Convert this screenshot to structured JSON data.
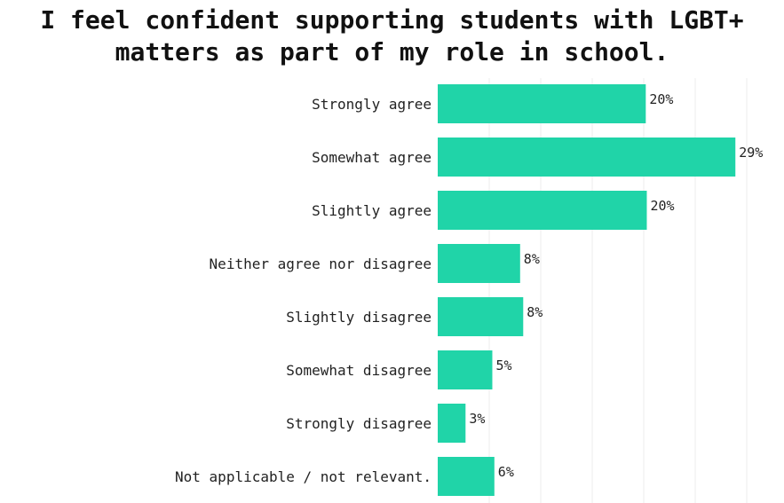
{
  "chart_data": {
    "type": "bar",
    "orientation": "horizontal",
    "title_lines": [
      "I feel confident supporting students with LGBT+",
      "matters as part of my role in school."
    ],
    "categories": [
      "Strongly agree",
      "Somewhat agree",
      "Slightly agree",
      "Neither agree nor disagree",
      "Slightly disagree",
      "Somewhat disagree",
      "Strongly disagree",
      "Not applicable / not relevant."
    ],
    "values": [
      20.2,
      28.9,
      20.3,
      8.0,
      8.3,
      5.3,
      2.7,
      5.5
    ],
    "data_labels": [
      "20%",
      "29%",
      "20%",
      "8%",
      "8%",
      "5%",
      "3%",
      "6%"
    ],
    "xlim": [
      0,
      30
    ],
    "bar_color": "#20d4a8",
    "grid": true
  }
}
